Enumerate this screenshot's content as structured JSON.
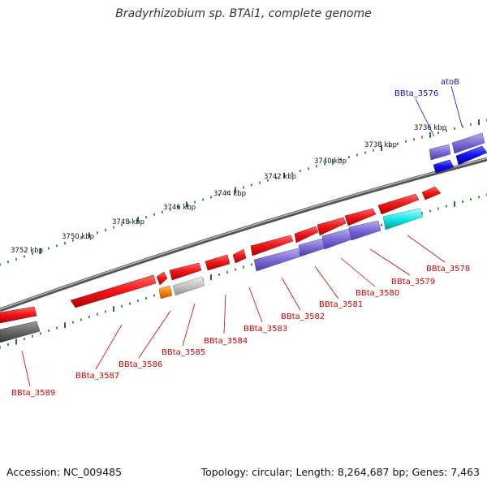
{
  "title": "Bradyrhizobium sp. BTAi1, complete genome",
  "footer": {
    "accession": "Accession: NC_009485",
    "stats": "Topology: circular; Length: 8,264,687 bp; Genes: 7,463"
  },
  "colors": {
    "forward": "#e8141a",
    "reverse_orange": "#ff8000",
    "light_gray": "#bdbdbd",
    "purple": "#7b6cd2",
    "blue": "#1010f0",
    "cyan": "#19e6e6",
    "dark_gray": "#666666",
    "backbone": "#7a7a7a",
    "tick_green": "#1a7a1a",
    "red_label": "#cc0000",
    "blue_label": "#1010cc"
  },
  "scale_labels": [
    "3736 kbp",
    "3738 kbp",
    "3740 kbp",
    "3742 kbp",
    "3744 kbp",
    "3746 kbp",
    "3748 kbp",
    "3750 kbp",
    "3752 kbp"
  ],
  "gene_labels": [
    {
      "text": "atoB",
      "color": "blue"
    },
    {
      "text": "BBta_3576",
      "color": "blue"
    },
    {
      "text": "BBta_3578",
      "color": "red"
    },
    {
      "text": "BBta_3579",
      "color": "red"
    },
    {
      "text": "BBta_3580",
      "color": "red"
    },
    {
      "text": "BBta_3581",
      "color": "red"
    },
    {
      "text": "BBta_3582",
      "color": "red"
    },
    {
      "text": "BBta_3583",
      "color": "red"
    },
    {
      "text": "BBta_3584",
      "color": "red"
    },
    {
      "text": "BBta_3585",
      "color": "red"
    },
    {
      "text": "BBta_3586",
      "color": "red"
    },
    {
      "text": "BBta_3587",
      "color": "red"
    },
    {
      "text": "BBta_3589",
      "color": "red"
    }
  ]
}
